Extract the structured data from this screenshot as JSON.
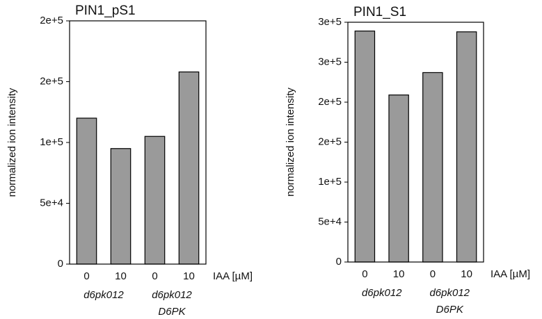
{
  "chart_data": [
    {
      "type": "bar",
      "title": "PIN1_pS1",
      "ylabel": "normalized ion intensity",
      "xlabel": "IAA [µM]",
      "categories": [
        "0",
        "10",
        "0",
        "10"
      ],
      "groups": [
        [
          "d6pk012"
        ],
        [
          "d6pk012",
          "D6PK"
        ]
      ],
      "values": [
        120000,
        95000,
        105000,
        158000
      ],
      "color": "#9a9a9a",
      "ylim": [
        0,
        200000
      ],
      "yticks": [
        0,
        {
          "value": 50000,
          "label": "5e+4"
        },
        {
          "value": 100000,
          "label": "1e+5"
        },
        {
          "value": 150000,
          "label": "2e+5"
        },
        {
          "value": 200000,
          "label": "2e+5"
        }
      ]
    },
    {
      "type": "bar",
      "title": "PIN1_S1",
      "ylabel": "normalized ion intensity",
      "xlabel": "IAA [µM]",
      "categories": [
        "0",
        "10",
        "0",
        "10"
      ],
      "groups": [
        [
          "d6pk012"
        ],
        [
          "d6pk012",
          "D6PK"
        ]
      ],
      "values": [
        289000,
        209000,
        237000,
        288000
      ],
      "color": "#9a9a9a",
      "ylim": [
        0,
        300000
      ],
      "yticks": [
        0,
        {
          "value": 50000,
          "label": "5e+4"
        },
        {
          "value": 100000,
          "label": "1e+5"
        },
        {
          "value": 150000,
          "label": "2e+5"
        },
        {
          "value": 200000,
          "label": "2e+5"
        },
        {
          "value": 250000,
          "label": "3e+5"
        },
        {
          "value": 300000,
          "label": "3e+5"
        }
      ]
    }
  ]
}
